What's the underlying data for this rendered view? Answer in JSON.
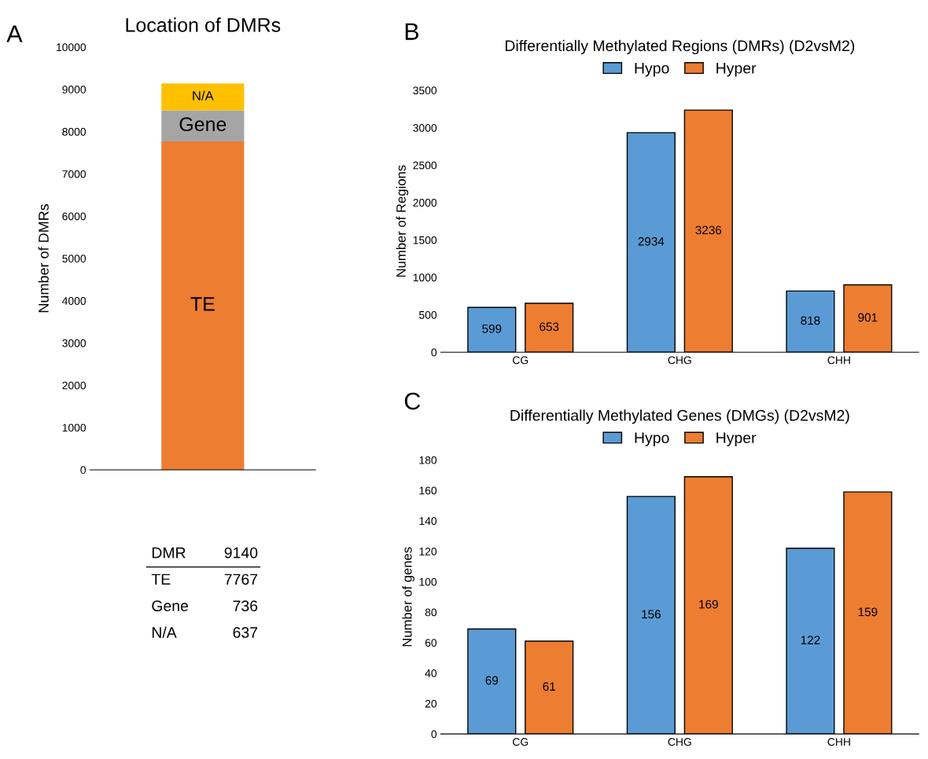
{
  "chart_data": [
    {
      "type": "bar",
      "stacked": true,
      "title": "Location of DMRs",
      "ylabel": "Number of DMRs",
      "categories": [
        null
      ],
      "series": [
        {
          "name": "TE",
          "color": "#ed7d31",
          "values": [
            7767
          ]
        },
        {
          "name": "Gene",
          "color": "#a5a5a5",
          "values": [
            736
          ]
        },
        {
          "name": "N/A",
          "color": "#ffc000",
          "values": [
            637
          ]
        }
      ],
      "ylim": [
        0,
        10000
      ],
      "yticks": [
        0,
        1000,
        2000,
        3000,
        4000,
        5000,
        6000,
        7000,
        8000,
        9000,
        10000
      ],
      "grid": false,
      "legend": false,
      "annotations": [
        "A",
        "DMR 9140",
        "TE 7767",
        "Gene 736",
        "N/A 637"
      ]
    },
    {
      "type": "bar",
      "title": "Differentially Methylated Regions (DMRs) (D2vsM2)",
      "ylabel": "Number of Regions",
      "categories": [
        "CG",
        "CHG",
        "CHH"
      ],
      "series": [
        {
          "name": "Hypo",
          "color": "#5b9bd5",
          "values": [
            599,
            2934,
            818
          ]
        },
        {
          "name": "Hyper",
          "color": "#ed7d31",
          "values": [
            653,
            3236,
            901
          ]
        }
      ],
      "ylim": [
        0,
        3500
      ],
      "yticks": [
        0,
        500,
        1000,
        1500,
        2000,
        2500,
        3000,
        3500
      ],
      "grid": false,
      "legend": "top",
      "data_labels": true,
      "annotations": [
        "B"
      ]
    },
    {
      "type": "bar",
      "title": "Differentially Methylated Genes (DMGs) (D2vsM2)",
      "ylabel": "Number of genes",
      "categories": [
        "CG",
        "CHG",
        "CHH"
      ],
      "series": [
        {
          "name": "Hypo",
          "color": "#5b9bd5",
          "values": [
            69,
            156,
            122
          ]
        },
        {
          "name": "Hyper",
          "color": "#ed7d31",
          "values": [
            61,
            169,
            159
          ]
        }
      ],
      "ylim": [
        0,
        180
      ],
      "yticks": [
        0,
        20,
        40,
        60,
        80,
        100,
        120,
        140,
        160,
        180
      ],
      "grid": false,
      "legend": "top",
      "data_labels": true,
      "annotations": [
        "C"
      ]
    }
  ]
}
